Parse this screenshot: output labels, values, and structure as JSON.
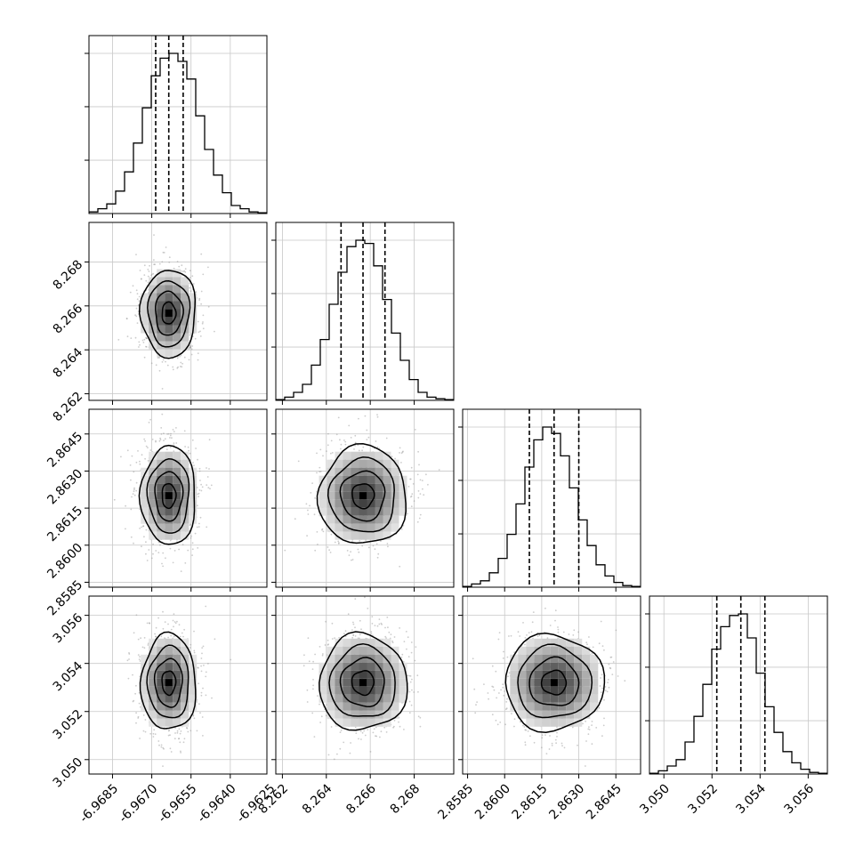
{
  "chart_data": {
    "type": "corner",
    "parameters": 4,
    "grid": true,
    "axes": [
      {
        "range": [
          -6.9694,
          -6.9626
        ],
        "ticks": [
          "-6.9685",
          "-6.9670",
          "-6.9655",
          "-6.9640",
          "-6.9625"
        ],
        "tick_values": [
          -6.9685,
          -6.967,
          -6.9655,
          -6.964,
          -6.9625
        ],
        "quantiles": [
          -6.96685,
          -6.96635,
          -6.9658
        ],
        "peak_2d": -6.9664
      },
      {
        "range": [
          8.2617,
          8.2698
        ],
        "ticks": [
          "8.262",
          "8.264",
          "8.266",
          "8.268"
        ],
        "tick_values": [
          8.262,
          8.264,
          8.266,
          8.268
        ],
        "quantiles": [
          8.26467,
          8.26567,
          8.26667
        ],
        "peak_2d": 8.2655
      },
      {
        "range": [
          2.8583,
          2.8655
        ],
        "ticks": [
          "2.8585",
          "2.8600",
          "2.8615",
          "2.8630",
          "2.8645"
        ],
        "tick_values": [
          2.8585,
          2.86,
          2.8615,
          2.863,
          2.8645
        ],
        "quantiles": [
          2.861,
          2.862,
          2.863
        ],
        "peak_2d": 2.8619
      },
      {
        "range": [
          3.0494,
          3.0568
        ],
        "ticks": [
          "3.050",
          "3.052",
          "3.054",
          "3.056"
        ],
        "tick_values": [
          3.05,
          3.052,
          3.054,
          3.056
        ],
        "quantiles": [
          3.0522,
          3.0532,
          3.0542
        ],
        "peak_2d": 3.0532
      }
    ],
    "histograms": [
      {
        "values": [
          0.01,
          0.03,
          0.06,
          0.14,
          0.26,
          0.44,
          0.66,
          0.86,
          0.97,
          1.0,
          0.95,
          0.84,
          0.61,
          0.4,
          0.24,
          0.13,
          0.05,
          0.03,
          0.01,
          0.005
        ]
      },
      {
        "values": [
          0.005,
          0.02,
          0.05,
          0.1,
          0.22,
          0.38,
          0.6,
          0.8,
          0.96,
          1.0,
          0.98,
          0.84,
          0.63,
          0.42,
          0.25,
          0.13,
          0.05,
          0.02,
          0.01,
          0.005
        ]
      },
      {
        "values": [
          0.005,
          0.02,
          0.04,
          0.09,
          0.18,
          0.33,
          0.52,
          0.75,
          0.92,
          1.0,
          0.96,
          0.82,
          0.62,
          0.42,
          0.26,
          0.14,
          0.07,
          0.03,
          0.01,
          0.005
        ]
      },
      {
        "values": [
          0.005,
          0.02,
          0.05,
          0.09,
          0.2,
          0.36,
          0.56,
          0.78,
          0.92,
          0.99,
          1.0,
          0.85,
          0.63,
          0.42,
          0.26,
          0.14,
          0.07,
          0.03,
          0.01,
          0.005
        ]
      }
    ]
  }
}
